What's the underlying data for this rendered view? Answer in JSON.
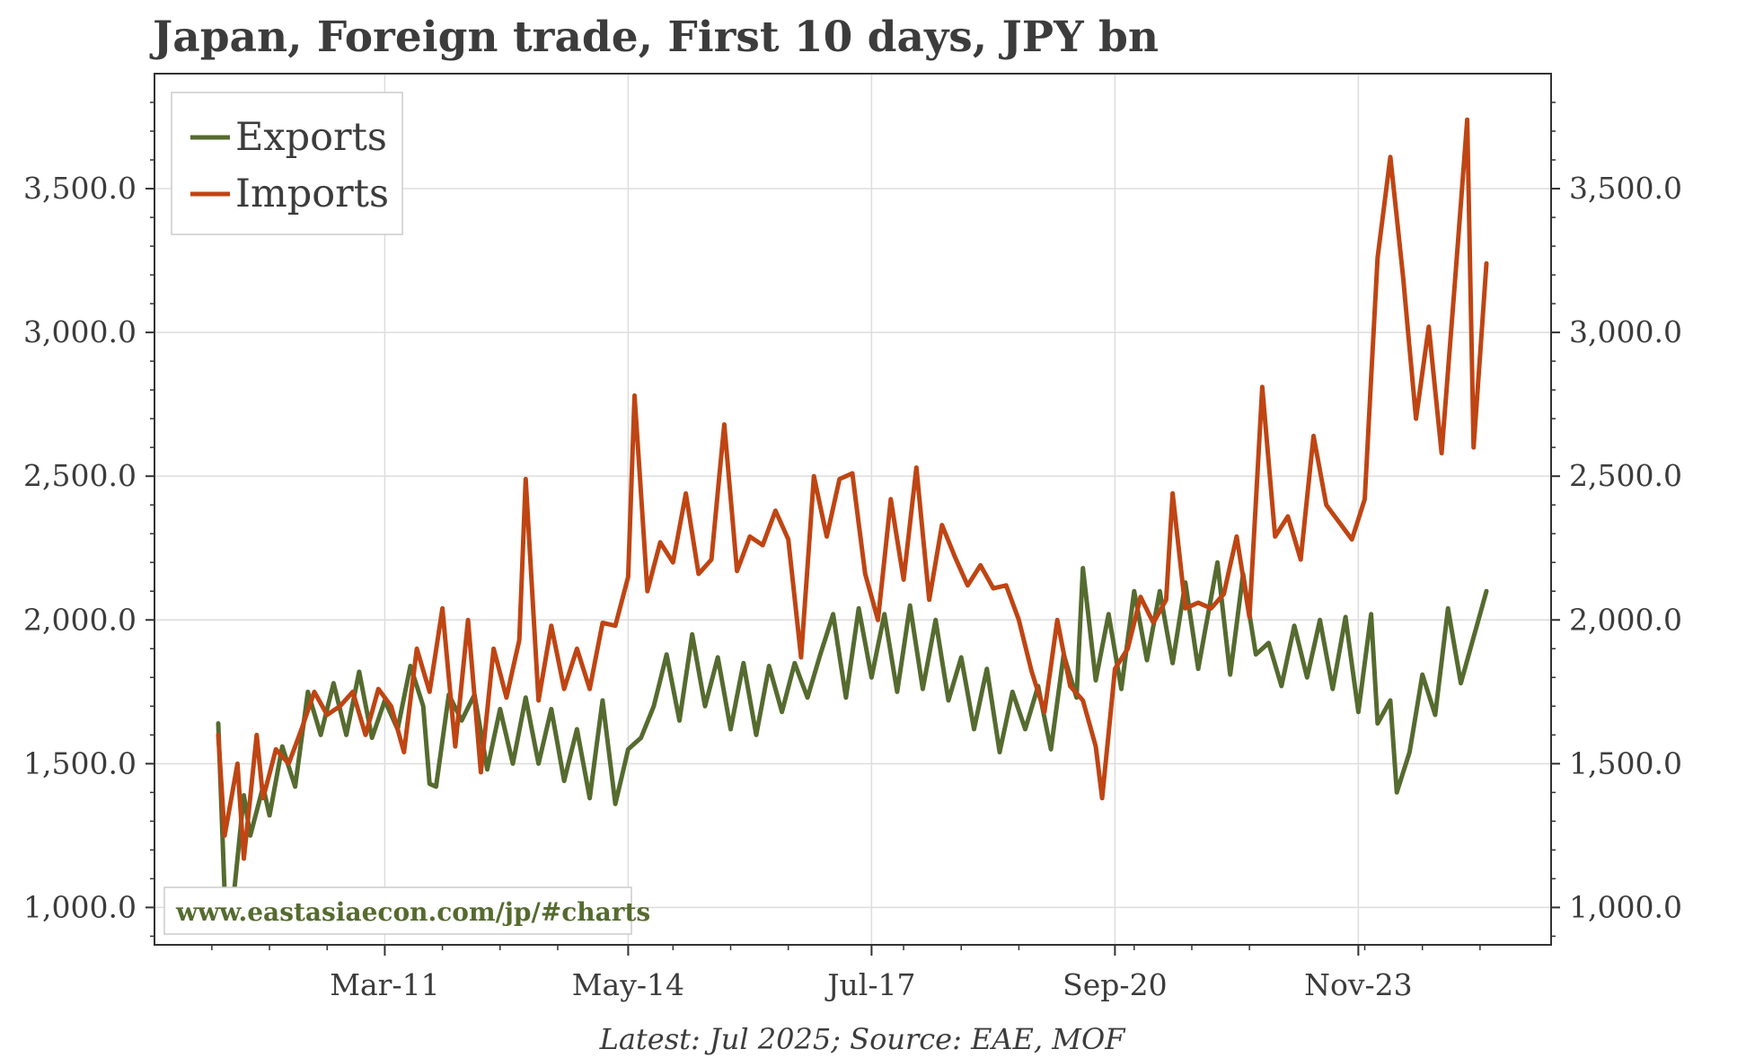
{
  "chart_data": {
    "type": "line",
    "title": "Japan, Foreign trade, First 10 days, JPY bn",
    "source_note": "Latest: Jul 2025; Source: EAE, MOF",
    "watermark": "www.eastasiaecon.com/jp/#charts",
    "x_start": "2009-01",
    "x_end": "2025-07",
    "x_ticks": [
      "Mar-11",
      "May-14",
      "Jul-17",
      "Sep-20",
      "Nov-23"
    ],
    "ylim": [
      870,
      3900
    ],
    "y_ticks": [
      "1,000.0",
      "1,500.0",
      "2,000.0",
      "2,500.0",
      "3,000.0",
      "3,500.0"
    ],
    "grid": true,
    "legend": "top-left",
    "series": [
      {
        "name": "Exports",
        "color": "#556b2f",
        "anchors": [
          [
            "2009-01",
            1640
          ],
          [
            "2009-02",
            1050
          ],
          [
            "2009-03",
            950
          ],
          [
            "2009-05",
            1390
          ],
          [
            "2009-06",
            1250
          ],
          [
            "2009-08",
            1420
          ],
          [
            "2009-09",
            1320
          ],
          [
            "2009-11",
            1560
          ],
          [
            "2010-01",
            1420
          ],
          [
            "2010-03",
            1750
          ],
          [
            "2010-05",
            1600
          ],
          [
            "2010-07",
            1780
          ],
          [
            "2010-09",
            1600
          ],
          [
            "2010-11",
            1820
          ],
          [
            "2011-01",
            1590
          ],
          [
            "2011-03",
            1720
          ],
          [
            "2011-05",
            1620
          ],
          [
            "2011-07",
            1840
          ],
          [
            "2011-09",
            1700
          ],
          [
            "2011-10",
            1430
          ],
          [
            "2011-11",
            1420
          ],
          [
            "2012-01",
            1740
          ],
          [
            "2012-03",
            1650
          ],
          [
            "2012-05",
            1740
          ],
          [
            "2012-07",
            1480
          ],
          [
            "2012-09",
            1690
          ],
          [
            "2012-11",
            1500
          ],
          [
            "2013-01",
            1730
          ],
          [
            "2013-03",
            1500
          ],
          [
            "2013-05",
            1690
          ],
          [
            "2013-07",
            1440
          ],
          [
            "2013-09",
            1620
          ],
          [
            "2013-11",
            1380
          ],
          [
            "2014-01",
            1720
          ],
          [
            "2014-03",
            1360
          ],
          [
            "2014-05",
            1550
          ],
          [
            "2014-07",
            1590
          ],
          [
            "2014-09",
            1700
          ],
          [
            "2014-11",
            1880
          ],
          [
            "2015-01",
            1650
          ],
          [
            "2015-03",
            1950
          ],
          [
            "2015-05",
            1700
          ],
          [
            "2015-07",
            1870
          ],
          [
            "2015-09",
            1620
          ],
          [
            "2015-11",
            1850
          ],
          [
            "2016-01",
            1600
          ],
          [
            "2016-03",
            1840
          ],
          [
            "2016-05",
            1680
          ],
          [
            "2016-07",
            1850
          ],
          [
            "2016-09",
            1730
          ],
          [
            "2016-11",
            1880
          ],
          [
            "2017-01",
            2020
          ],
          [
            "2017-03",
            1730
          ],
          [
            "2017-05",
            2040
          ],
          [
            "2017-07",
            1800
          ],
          [
            "2017-09",
            2020
          ],
          [
            "2017-11",
            1750
          ],
          [
            "2018-01",
            2050
          ],
          [
            "2018-03",
            1760
          ],
          [
            "2018-05",
            2000
          ],
          [
            "2018-07",
            1720
          ],
          [
            "2018-09",
            1870
          ],
          [
            "2018-11",
            1620
          ],
          [
            "2019-01",
            1830
          ],
          [
            "2019-03",
            1540
          ],
          [
            "2019-05",
            1750
          ],
          [
            "2019-07",
            1620
          ],
          [
            "2019-09",
            1770
          ],
          [
            "2019-11",
            1550
          ],
          [
            "2020-01",
            1880
          ],
          [
            "2020-03",
            1730
          ],
          [
            "2020-04",
            2180
          ],
          [
            "2020-06",
            1790
          ],
          [
            "2020-08",
            2020
          ],
          [
            "2020-10",
            1760
          ],
          [
            "2020-12",
            2100
          ],
          [
            "2021-02",
            1860
          ],
          [
            "2021-04",
            2100
          ],
          [
            "2021-06",
            1850
          ],
          [
            "2021-08",
            2130
          ],
          [
            "2021-10",
            1830
          ],
          [
            "2022-01",
            2200
          ],
          [
            "2022-03",
            1810
          ],
          [
            "2022-05",
            2160
          ],
          [
            "2022-07",
            1880
          ],
          [
            "2022-09",
            1920
          ],
          [
            "2022-11",
            1770
          ],
          [
            "2023-01",
            1980
          ],
          [
            "2023-03",
            1800
          ],
          [
            "2023-05",
            2000
          ],
          [
            "2023-07",
            1760
          ],
          [
            "2023-09",
            2010
          ],
          [
            "2023-11",
            1680
          ],
          [
            "2024-01",
            2020
          ],
          [
            "2024-02",
            1640
          ],
          [
            "2024-04",
            1720
          ],
          [
            "2024-05",
            1400
          ],
          [
            "2024-07",
            1540
          ],
          [
            "2024-09",
            1810
          ],
          [
            "2024-11",
            1670
          ],
          [
            "2025-01",
            2040
          ],
          [
            "2025-03",
            1780
          ],
          [
            "2025-07",
            2100
          ]
        ]
      },
      {
        "name": "Imports",
        "color": "#bf4513",
        "anchors": [
          [
            "2009-01",
            1600
          ],
          [
            "2009-02",
            1250
          ],
          [
            "2009-04",
            1500
          ],
          [
            "2009-05",
            1170
          ],
          [
            "2009-07",
            1600
          ],
          [
            "2009-08",
            1380
          ],
          [
            "2009-10",
            1550
          ],
          [
            "2009-12",
            1500
          ],
          [
            "2010-02",
            1620
          ],
          [
            "2010-04",
            1750
          ],
          [
            "2010-06",
            1670
          ],
          [
            "2010-08",
            1700
          ],
          [
            "2010-10",
            1750
          ],
          [
            "2010-12",
            1600
          ],
          [
            "2011-02",
            1760
          ],
          [
            "2011-04",
            1700
          ],
          [
            "2011-06",
            1540
          ],
          [
            "2011-08",
            1900
          ],
          [
            "2011-10",
            1750
          ],
          [
            "2011-12",
            2040
          ],
          [
            "2012-02",
            1560
          ],
          [
            "2012-04",
            2000
          ],
          [
            "2012-06",
            1470
          ],
          [
            "2012-08",
            1900
          ],
          [
            "2012-10",
            1730
          ],
          [
            "2012-12",
            1930
          ],
          [
            "2013-01",
            2490
          ],
          [
            "2013-03",
            1720
          ],
          [
            "2013-05",
            1980
          ],
          [
            "2013-07",
            1760
          ],
          [
            "2013-09",
            1900
          ],
          [
            "2013-11",
            1760
          ],
          [
            "2014-01",
            1990
          ],
          [
            "2014-03",
            1980
          ],
          [
            "2014-05",
            2150
          ],
          [
            "2014-06",
            2780
          ],
          [
            "2014-08",
            2100
          ],
          [
            "2014-10",
            2270
          ],
          [
            "2014-12",
            2200
          ],
          [
            "2015-02",
            2440
          ],
          [
            "2015-04",
            2160
          ],
          [
            "2015-06",
            2210
          ],
          [
            "2015-08",
            2680
          ],
          [
            "2015-10",
            2170
          ],
          [
            "2015-12",
            2290
          ],
          [
            "2016-02",
            2260
          ],
          [
            "2016-04",
            2380
          ],
          [
            "2016-06",
            2280
          ],
          [
            "2016-08",
            1870
          ],
          [
            "2016-10",
            2500
          ],
          [
            "2016-12",
            2290
          ],
          [
            "2017-02",
            2490
          ],
          [
            "2017-04",
            2510
          ],
          [
            "2017-06",
            2160
          ],
          [
            "2017-08",
            2000
          ],
          [
            "2017-10",
            2420
          ],
          [
            "2017-12",
            2140
          ],
          [
            "2018-02",
            2530
          ],
          [
            "2018-04",
            2070
          ],
          [
            "2018-06",
            2330
          ],
          [
            "2018-08",
            2220
          ],
          [
            "2018-10",
            2120
          ],
          [
            "2018-12",
            2190
          ],
          [
            "2019-02",
            2110
          ],
          [
            "2019-04",
            2120
          ],
          [
            "2019-06",
            2000
          ],
          [
            "2019-08",
            1820
          ],
          [
            "2019-10",
            1680
          ],
          [
            "2019-12",
            2000
          ],
          [
            "2020-02",
            1770
          ],
          [
            "2020-04",
            1720
          ],
          [
            "2020-06",
            1560
          ],
          [
            "2020-07",
            1380
          ],
          [
            "2020-09",
            1830
          ],
          [
            "2020-11",
            1900
          ],
          [
            "2021-01",
            2080
          ],
          [
            "2021-03",
            1990
          ],
          [
            "2021-05",
            2070
          ],
          [
            "2021-06",
            2440
          ],
          [
            "2021-08",
            2040
          ],
          [
            "2021-10",
            2060
          ],
          [
            "2021-12",
            2040
          ],
          [
            "2022-02",
            2090
          ],
          [
            "2022-04",
            2290
          ],
          [
            "2022-06",
            2010
          ],
          [
            "2022-08",
            2810
          ],
          [
            "2022-10",
            2290
          ],
          [
            "2022-12",
            2360
          ],
          [
            "2023-02",
            2210
          ],
          [
            "2023-04",
            2640
          ],
          [
            "2023-06",
            2400
          ],
          [
            "2023-08",
            2340
          ],
          [
            "2023-10",
            2280
          ],
          [
            "2023-12",
            2420
          ],
          [
            "2024-02",
            3260
          ],
          [
            "2024-04",
            3610
          ],
          [
            "2024-06",
            3190
          ],
          [
            "2024-08",
            2700
          ],
          [
            "2024-10",
            3020
          ],
          [
            "2024-12",
            2580
          ],
          [
            "2025-02",
            3150
          ],
          [
            "2025-04",
            3740
          ],
          [
            "2025-05",
            2600
          ],
          [
            "2025-07",
            3240
          ]
        ]
      }
    ]
  }
}
